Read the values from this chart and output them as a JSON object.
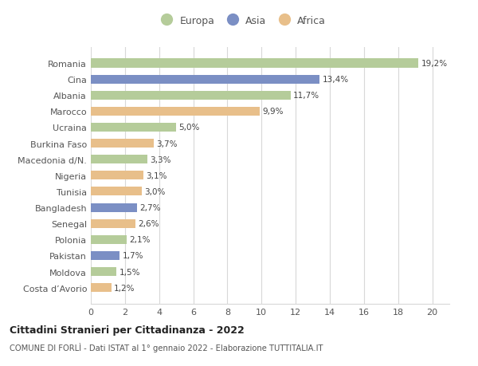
{
  "countries": [
    "Romania",
    "Cina",
    "Albania",
    "Marocco",
    "Ucraina",
    "Burkina Faso",
    "Macedonia d/N.",
    "Nigeria",
    "Tunisia",
    "Bangladesh",
    "Senegal",
    "Polonia",
    "Pakistan",
    "Moldova",
    "Costa d’Avorio"
  ],
  "values": [
    19.2,
    13.4,
    11.7,
    9.9,
    5.0,
    3.7,
    3.3,
    3.1,
    3.0,
    2.7,
    2.6,
    2.1,
    1.7,
    1.5,
    1.2
  ],
  "labels": [
    "19,2%",
    "13,4%",
    "11,7%",
    "9,9%",
    "5,0%",
    "3,7%",
    "3,3%",
    "3,1%",
    "3,0%",
    "2,7%",
    "2,6%",
    "2,1%",
    "1,7%",
    "1,5%",
    "1,2%"
  ],
  "continents": [
    "Europa",
    "Asia",
    "Europa",
    "Africa",
    "Europa",
    "Africa",
    "Europa",
    "Africa",
    "Africa",
    "Asia",
    "Africa",
    "Europa",
    "Asia",
    "Europa",
    "Africa"
  ],
  "colors": {
    "Europa": "#b5cc9a",
    "Asia": "#7b8fc4",
    "Africa": "#e8bf8a"
  },
  "legend_labels": [
    "Europa",
    "Asia",
    "Africa"
  ],
  "title1": "Cittadini Stranieri per Cittadinanza - 2022",
  "title2": "COMUNE DI FORLÌ - Dati ISTAT al 1° gennaio 2022 - Elaborazione TUTTITALIA.IT",
  "xlim": [
    0,
    21
  ],
  "xticks": [
    0,
    2,
    4,
    6,
    8,
    10,
    12,
    14,
    16,
    18,
    20
  ],
  "background_color": "#ffffff",
  "grid_color": "#d8d8d8",
  "bar_height": 0.55
}
